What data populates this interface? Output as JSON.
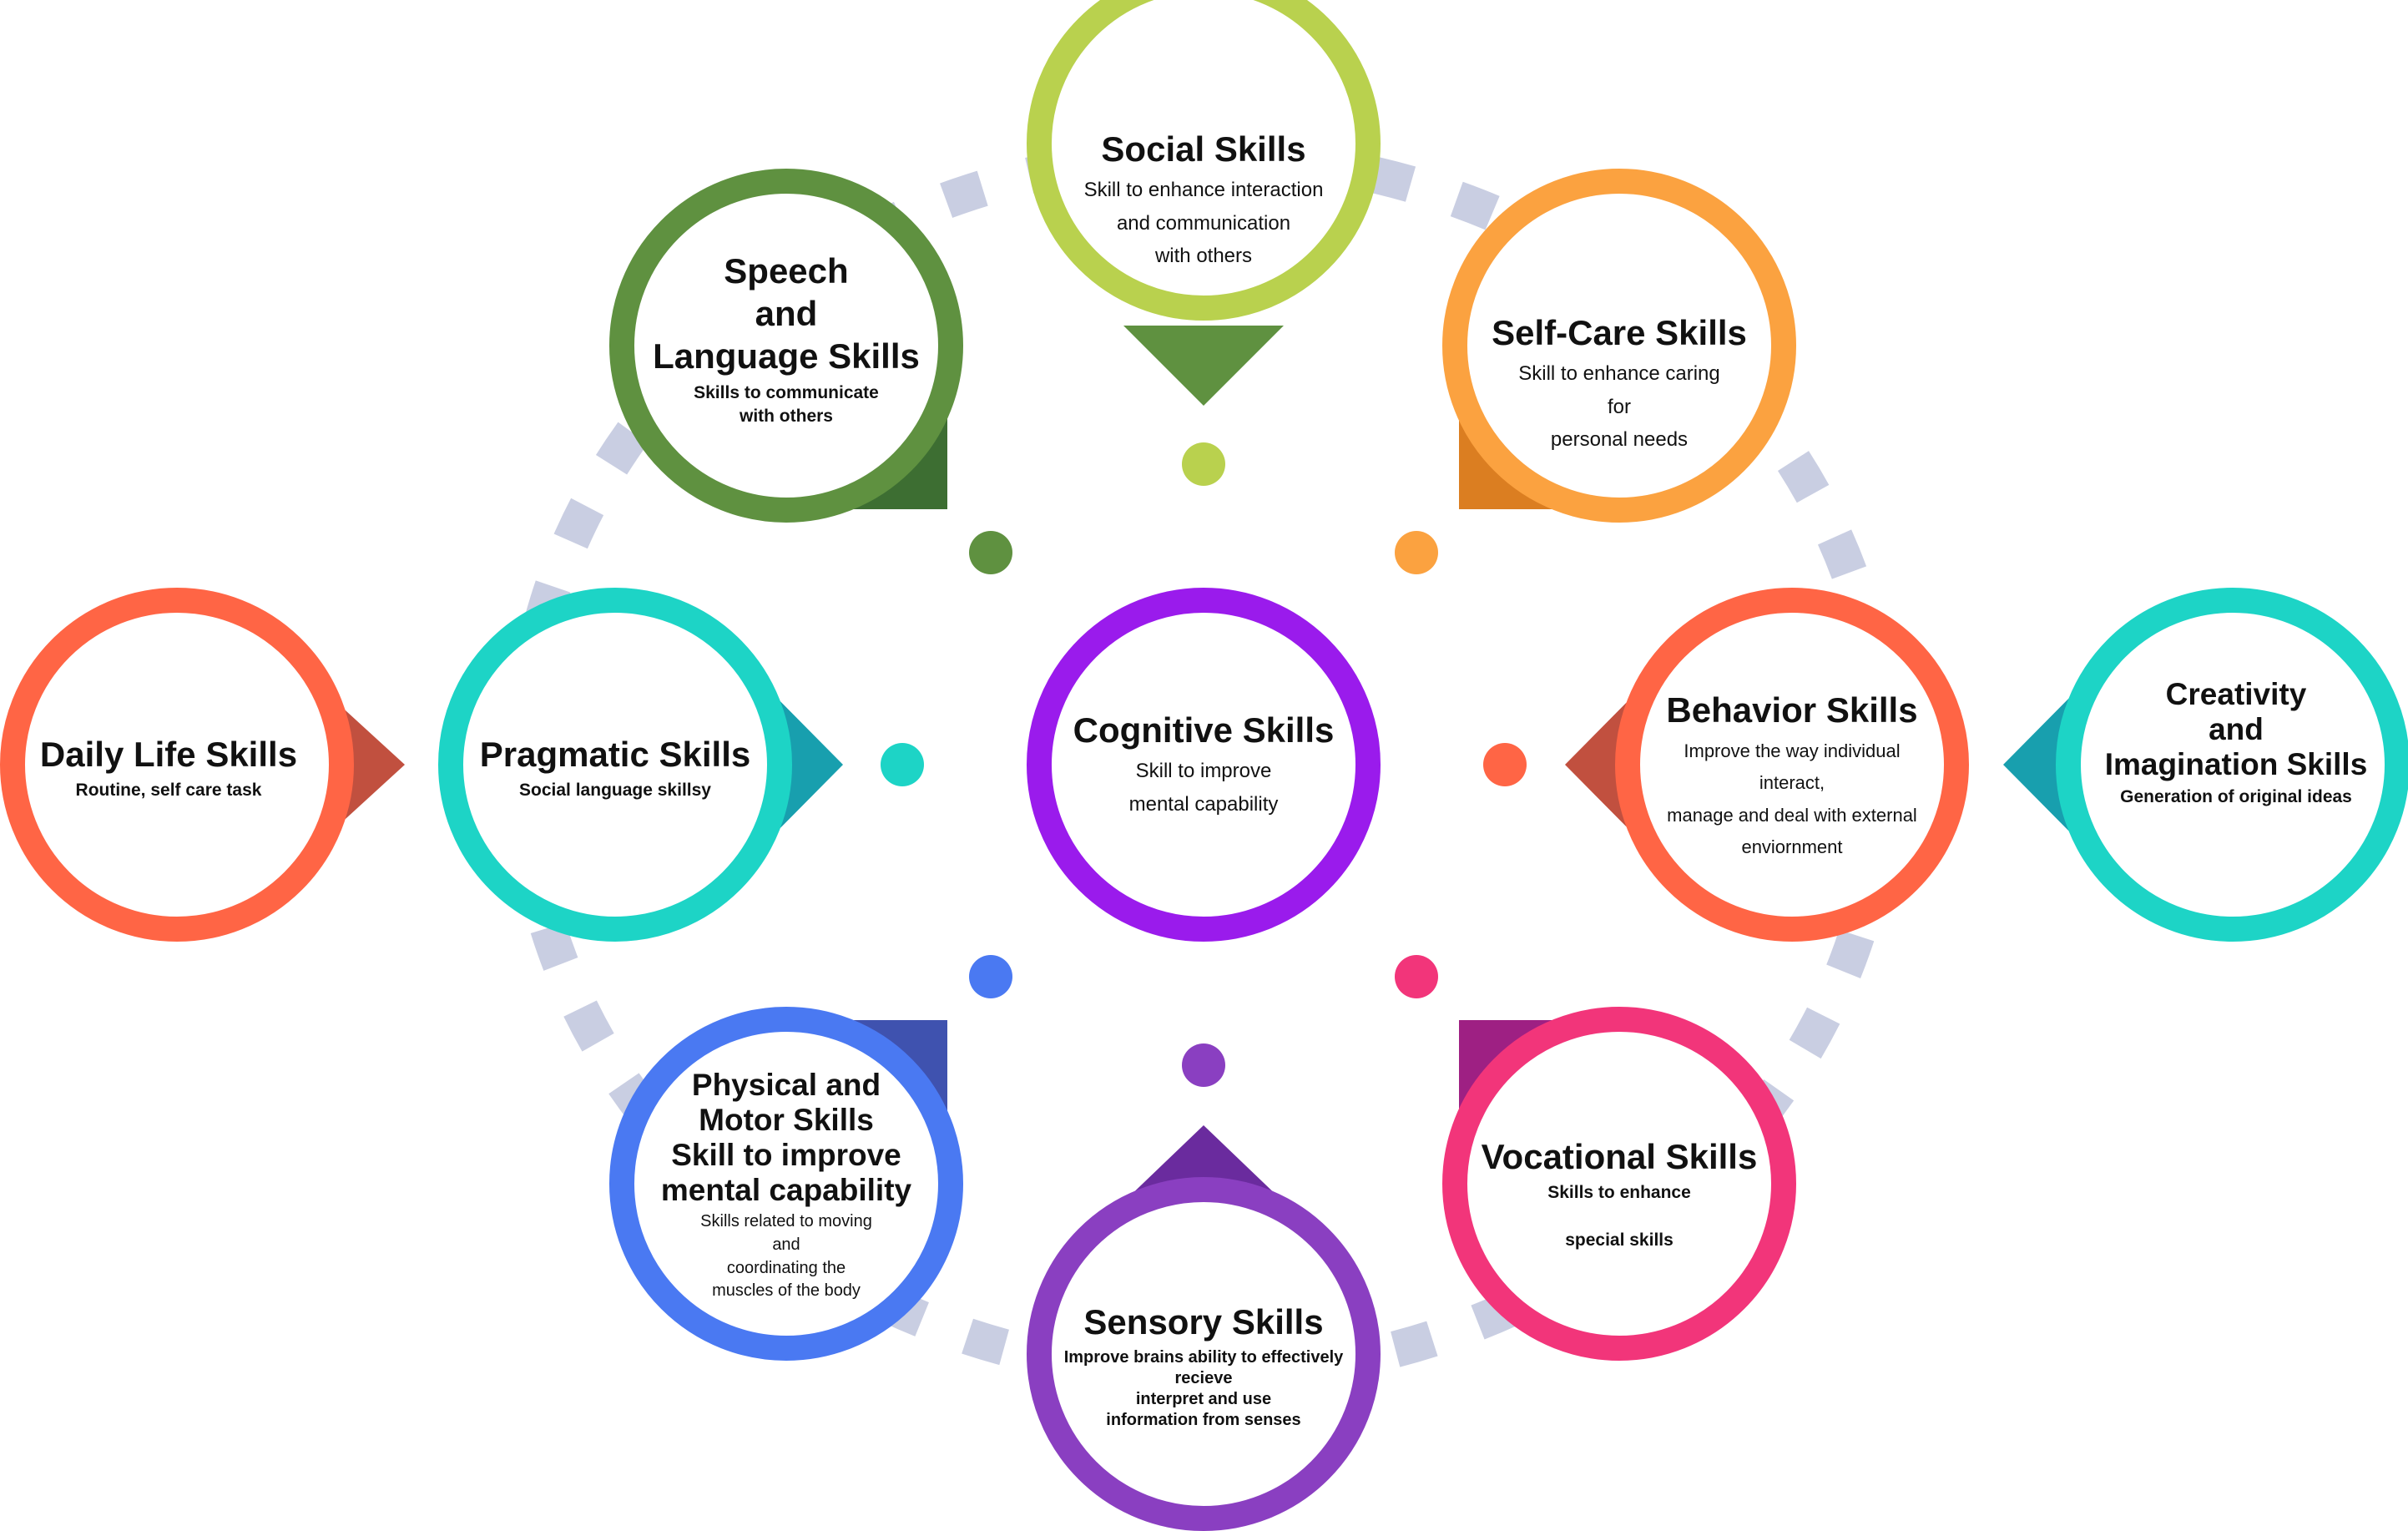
{
  "colors": {
    "connector": "#C9CEE2",
    "social": "#B9D14E",
    "speech": "#5F9140",
    "selfcare": "#FBA240",
    "pragmatic": "#1DD4C6",
    "cognitive": "#9A1BEC",
    "behavior": "#FF6545",
    "daily": "#FF6545",
    "creativity": "#1DD4C6",
    "physical": "#4A79F2",
    "sensory": "#8A3FC1",
    "vocational": "#F2357A"
  },
  "nodes": {
    "cognitive": {
      "title": "Cognitive Skills",
      "desc": "Skill to improve\nmental capability"
    },
    "social": {
      "title": "Social Skills",
      "desc": "Skill to enhance interaction\nand communication\nwith others"
    },
    "speech": {
      "title": "Speech\nand\nLanguage Skills",
      "desc": "Skills to communicate\nwith others"
    },
    "selfcare": {
      "title": "Self-Care Skills",
      "desc": "Skill to enhance caring\nfor\npersonal needs"
    },
    "pragmatic": {
      "title": "Pragmatic Skills",
      "desc": "Social language skillsy"
    },
    "behavior": {
      "title": "Behavior Skills",
      "desc": "Improve the way individual\ninteract,\nmanage and deal with external\nenviornment"
    },
    "daily": {
      "title": "Daily Life Skills",
      "desc": "Routine, self care task"
    },
    "creativity": {
      "title": "Creativity\nand\nImagination Skills",
      "desc": "Generation of original  ideas"
    },
    "physical": {
      "title": "Physical and\nMotor Skills\nSkill to improve\nmental capability",
      "desc": "Skills related to moving\nand\ncoordinating the\nmuscles of the body"
    },
    "sensory": {
      "title": "Sensory Skills",
      "desc": "Improve brains ability to effectively\nrecieve\ninterpret and use\ninformation from senses"
    },
    "vocational": {
      "title": "Vocational Skills",
      "desc": "Skills to enhance\n\nspecial skills"
    }
  }
}
